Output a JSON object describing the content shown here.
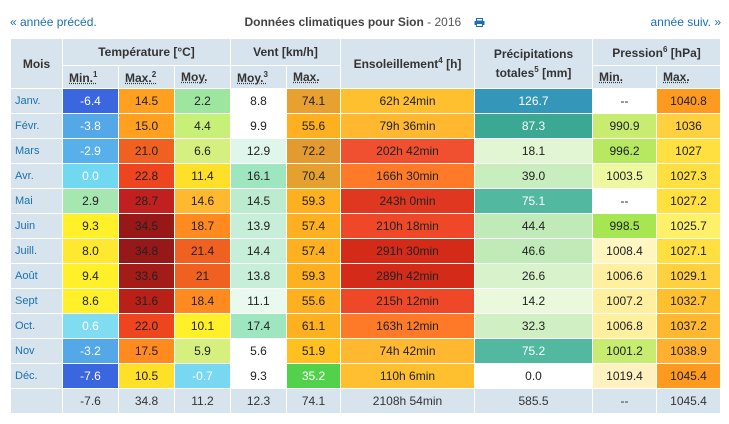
{
  "nav": {
    "prev": "« année précéd.",
    "next": "année suiv. »"
  },
  "title": {
    "main": "Données climatiques pour Sion",
    "year": " - 2016",
    "print_icon": "printer-icon"
  },
  "headers": {
    "mois": "Mois",
    "temperature": "Température [°C]",
    "vent": "Vent [km/h]",
    "ensoleillement": "Ensoleillement",
    "ensoleillement_sup": "4",
    "ensoleillement_unit": " [h]",
    "precip_1": "Précipitations",
    "precip_2": "totales",
    "precip_sup": "5",
    "precip_unit": " [mm]",
    "pression": "Pression",
    "pression_sup": "6",
    "pression_unit": " [hPa]",
    "t_min": "Min.",
    "t_min_sup": "1",
    "t_max": "Max.",
    "t_max_sup": "2",
    "t_moy": "Moy.",
    "v_moy": "Moy.",
    "v_moy_sup": "3",
    "v_max": "Max.",
    "p_min": "Min.",
    "p_max": "Max."
  },
  "rows": [
    {
      "month": "Janv.",
      "tmin": "-6.4",
      "tmax": "14.5",
      "tmoy": "2.2",
      "vmoy": "8.8",
      "vmax": "74.1",
      "sun": "62h 24min",
      "precip": "126.7",
      "pmin": "--",
      "pmax": "1040.8",
      "c": [
        "#3a66e0",
        "#ffa020",
        "#9ee6a0",
        "#ffffff",
        "#e8a030",
        "#ffc030",
        "#3496b8",
        "#ffffff",
        "#ff9a20"
      ],
      "f": [
        "#ffffff",
        "#222",
        "#222",
        "#222",
        "#222",
        "#222",
        "#ffffff",
        "#222",
        "#222"
      ]
    },
    {
      "month": "Févr.",
      "tmin": "-3.8",
      "tmax": "15.0",
      "tmoy": "4.4",
      "vmoy": "9.9",
      "vmax": "55.6",
      "sun": "79h 36min",
      "precip": "87.3",
      "pmin": "990.9",
      "pmax": "1036",
      "c": [
        "#55a8e8",
        "#ffa020",
        "#c6f078",
        "#ffffff",
        "#ffb020",
        "#ffb830",
        "#3aa892",
        "#c8ec70",
        "#ffd040"
      ],
      "f": [
        "#ffffff",
        "#222",
        "#222",
        "#222",
        "#222",
        "#222",
        "#ffffff",
        "#222",
        "#222"
      ]
    },
    {
      "month": "Mars",
      "tmin": "-2.9",
      "tmax": "21.0",
      "tmoy": "6.6",
      "vmoy": "12.9",
      "vmax": "72.2",
      "sun": "202h 42min",
      "precip": "18.1",
      "pmin": "996.2",
      "pmax": "1027",
      "c": [
        "#58b0ea",
        "#f06020",
        "#d6f080",
        "#dff7ea",
        "#e39a30",
        "#f05030",
        "#e2f6d4",
        "#b6e860",
        "#ffe040"
      ],
      "f": [
        "#ffffff",
        "#222",
        "#222",
        "#222",
        "#222",
        "#222",
        "#222",
        "#222",
        "#222"
      ]
    },
    {
      "month": "Avr.",
      "tmin": "0.0",
      "tmax": "22.8",
      "tmoy": "11.4",
      "vmoy": "16.1",
      "vmax": "70.4",
      "sun": "166h 30min",
      "precip": "39.0",
      "pmin": "1003.5",
      "pmax": "1027.3",
      "c": [
        "#70d8f0",
        "#ee4420",
        "#ffe028",
        "#9ee6c0",
        "#e6a030",
        "#ff7a28",
        "#c8eec0",
        "#eef8a0",
        "#ffe040"
      ],
      "f": [
        "#ffffff",
        "#222",
        "#222",
        "#222",
        "#222",
        "#222",
        "#222",
        "#222",
        "#222"
      ]
    },
    {
      "month": "Mai",
      "tmin": "2.9",
      "tmax": "28.7",
      "tmoy": "14.6",
      "vmoy": "14.5",
      "vmax": "59.3",
      "sun": "243h 0min",
      "precip": "75.1",
      "pmin": "--",
      "pmax": "1027.2",
      "c": [
        "#a6e6b0",
        "#c02020",
        "#ffb830",
        "#bcebd0",
        "#ffb020",
        "#e03820",
        "#52b8a0",
        "#ffffff",
        "#ffe040"
      ],
      "f": [
        "#222",
        "#222",
        "#222",
        "#222",
        "#222",
        "#222",
        "#ffffff",
        "#222",
        "#222"
      ]
    },
    {
      "month": "Juin",
      "tmin": "9.3",
      "tmax": "34.5",
      "tmoy": "18.7",
      "vmoy": "13.9",
      "vmax": "57.4",
      "sun": "210h 18min",
      "precip": "44.4",
      "pmin": "998.5",
      "pmax": "1025.7",
      "c": [
        "#fff02a",
        "#981818",
        "#ff8a20",
        "#c6eed8",
        "#ffb020",
        "#ee4828",
        "#c0eab8",
        "#a6e650",
        "#fff06a"
      ],
      "f": [
        "#222",
        "#222",
        "#222",
        "#222",
        "#222",
        "#222",
        "#222",
        "#222",
        "#222"
      ]
    },
    {
      "month": "Juill.",
      "tmin": "8.0",
      "tmax": "34.8",
      "tmoy": "21.4",
      "vmoy": "14.4",
      "vmax": "57.4",
      "sun": "291h 30min",
      "precip": "46.6",
      "pmin": "1008.4",
      "pmax": "1027.1",
      "c": [
        "#ffe830",
        "#961818",
        "#f06020",
        "#c6eed8",
        "#ffb020",
        "#d42a18",
        "#c0eab8",
        "#fff6c0",
        "#ffe040"
      ],
      "f": [
        "#222",
        "#222",
        "#222",
        "#222",
        "#222",
        "#222",
        "#222",
        "#222",
        "#222"
      ]
    },
    {
      "month": "Août",
      "tmin": "9.4",
      "tmax": "33.6",
      "tmoy": "21",
      "vmoy": "13.8",
      "vmax": "59.3",
      "sun": "289h 42min",
      "precip": "26.6",
      "pmin": "1006.6",
      "pmax": "1029.1",
      "c": [
        "#fff02a",
        "#a41c18",
        "#f06020",
        "#c6eed8",
        "#ffb020",
        "#d42a18",
        "#d8f2cc",
        "#fff0a0",
        "#ffd040"
      ],
      "f": [
        "#222",
        "#222",
        "#222",
        "#222",
        "#222",
        "#222",
        "#222",
        "#222",
        "#222"
      ]
    },
    {
      "month": "Sept",
      "tmin": "8.6",
      "tmax": "31.6",
      "tmoy": "18.4",
      "vmoy": "11.1",
      "vmax": "55.6",
      "sun": "215h 12min",
      "precip": "14.2",
      "pmin": "1007.2",
      "pmax": "1032.7",
      "c": [
        "#fff02a",
        "#b82018",
        "#ff8a20",
        "#eaf9ee",
        "#ffb020",
        "#ee4828",
        "#eaf8dc",
        "#fff0a0",
        "#ffc030"
      ],
      "f": [
        "#222",
        "#222",
        "#222",
        "#222",
        "#222",
        "#222",
        "#222",
        "#222",
        "#222"
      ]
    },
    {
      "month": "Oct.",
      "tmin": "0.6",
      "tmax": "22.0",
      "tmoy": "10.1",
      "vmoy": "17.4",
      "vmax": "61.1",
      "sun": "163h 12min",
      "precip": "32.3",
      "pmin": "1006.8",
      "pmax": "1037.2",
      "c": [
        "#80dcf0",
        "#ee4420",
        "#fff02a",
        "#9ee6c0",
        "#ffb020",
        "#ff7a28",
        "#d0f0c4",
        "#fff0a0",
        "#ffb830"
      ],
      "f": [
        "#ffffff",
        "#222",
        "#222",
        "#222",
        "#222",
        "#222",
        "#222",
        "#222",
        "#222"
      ]
    },
    {
      "month": "Nov",
      "tmin": "-3.2",
      "tmax": "17.5",
      "tmoy": "5.9",
      "vmoy": "5.6",
      "vmax": "51.9",
      "sun": "74h 42min",
      "precip": "75.2",
      "pmin": "1001.2",
      "pmax": "1038.9",
      "c": [
        "#55a8e8",
        "#ff8a20",
        "#d6f080",
        "#ffffff",
        "#ffc020",
        "#ffb830",
        "#52b8a0",
        "#c8ec70",
        "#ffb030"
      ],
      "f": [
        "#ffffff",
        "#222",
        "#222",
        "#222",
        "#222",
        "#222",
        "#ffffff",
        "#222",
        "#222"
      ]
    },
    {
      "month": "Déc.",
      "tmin": "-7.6",
      "tmax": "10.5",
      "tmoy": "-0.7",
      "vmoy": "9.3",
      "vmax": "35.2",
      "sun": "110h 6min",
      "precip": "0.0",
      "pmin": "1019.4",
      "pmax": "1045.4",
      "c": [
        "#3a66e0",
        "#ffe028",
        "#78d8f2",
        "#ffffff",
        "#52d24a",
        "#ffc030",
        "#ffffff",
        "#fff2c0",
        "#ff9a20"
      ],
      "f": [
        "#ffffff",
        "#222",
        "#ffffff",
        "#222",
        "#ffffff",
        "#222",
        "#222",
        "#222",
        "#222"
      ]
    }
  ],
  "totals": {
    "tmin": "-7.6",
    "tmax": "34.8",
    "tmoy": "11.2",
    "vmoy": "12.3",
    "vmax": "74.1",
    "sun": "2108h 54min",
    "precip": "585.5",
    "pmin": "--",
    "pmax": "1045.4"
  }
}
